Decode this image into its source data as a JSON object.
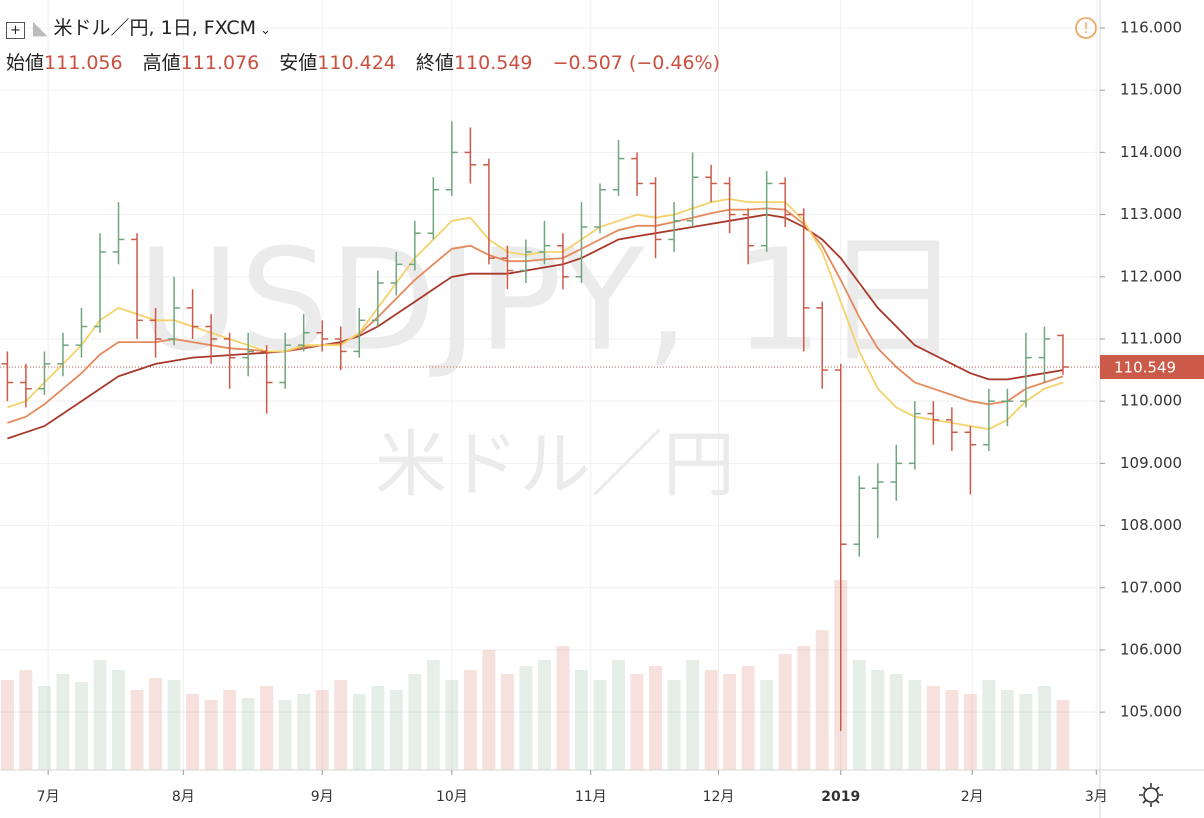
{
  "chart_data": {
    "type": "ohlc",
    "title": "米ドル／円, 1日, FXCM",
    "watermark": "USDJPY, 1日",
    "watermark_sub": "米ドル／円",
    "labels": {
      "open": "始値",
      "high": "高値",
      "low": "安値",
      "close": "終値"
    },
    "change_label": "−0.507 (−0.46%)",
    "last_price": 110.549,
    "up_color": "#6fa57f",
    "down_color": "#cc5a48",
    "xlim": [
      -0.4,
      59.0
    ],
    "xticks": [
      {
        "value": 2.2,
        "label": "7月"
      },
      {
        "value": 9.5,
        "label": "8月"
      },
      {
        "value": 17,
        "label": "9月"
      },
      {
        "value": 24,
        "label": "10月"
      },
      {
        "value": 31.5,
        "label": "11月"
      },
      {
        "value": 38.4,
        "label": "12月"
      },
      {
        "value": 45,
        "label": "2019"
      },
      {
        "value": 52.1,
        "label": "2月"
      },
      {
        "value": 58.8,
        "label": "3月"
      }
    ],
    "ylim": [
      104.07,
      116.45
    ],
    "yticks": [
      {
        "value": 105,
        "label": "105.000"
      },
      {
        "value": 106,
        "label": "106.000"
      },
      {
        "value": 107,
        "label": "107.000"
      },
      {
        "value": 108,
        "label": "108.000"
      },
      {
        "value": 109,
        "label": "109.000"
      },
      {
        "value": 110,
        "label": "110.000"
      },
      {
        "value": 111,
        "label": "111.000"
      },
      {
        "value": 112,
        "label": "112.000"
      },
      {
        "value": 113,
        "label": "113.000"
      },
      {
        "value": 114,
        "label": "114.000"
      },
      {
        "value": 115,
        "label": "115.000"
      },
      {
        "value": 116,
        "label": "116.000"
      }
    ],
    "grid": true,
    "ohlc": [
      [
        110.6,
        110.8,
        110.0,
        110.3
      ],
      [
        110.3,
        110.6,
        109.9,
        110.2
      ],
      [
        110.2,
        110.8,
        110.1,
        110.6
      ],
      [
        110.6,
        111.1,
        110.4,
        110.9
      ],
      [
        110.9,
        111.5,
        110.7,
        111.2
      ],
      [
        111.2,
        112.7,
        111.1,
        112.4
      ],
      [
        112.4,
        113.2,
        112.2,
        112.6
      ],
      [
        112.6,
        112.7,
        111.0,
        111.3
      ],
      [
        111.3,
        111.5,
        110.7,
        111.0
      ],
      [
        111.0,
        112.0,
        110.9,
        111.5
      ],
      [
        111.5,
        111.8,
        111.0,
        111.2
      ],
      [
        111.2,
        111.4,
        110.6,
        111.0
      ],
      [
        111.0,
        111.1,
        110.2,
        110.7
      ],
      [
        110.7,
        111.1,
        110.4,
        110.8
      ],
      [
        110.8,
        110.9,
        109.8,
        110.3
      ],
      [
        110.3,
        111.1,
        110.2,
        110.9
      ],
      [
        110.9,
        111.4,
        110.8,
        111.1
      ],
      [
        111.1,
        111.3,
        110.8,
        111.0
      ],
      [
        111.0,
        111.2,
        110.5,
        110.8
      ],
      [
        110.8,
        111.5,
        110.7,
        111.3
      ],
      [
        111.3,
        112.1,
        111.2,
        111.9
      ],
      [
        111.9,
        112.4,
        111.7,
        112.2
      ],
      [
        112.2,
        112.9,
        112.1,
        112.7
      ],
      [
        112.7,
        113.6,
        112.6,
        113.4
      ],
      [
        113.4,
        114.5,
        113.3,
        114.0
      ],
      [
        114.0,
        114.4,
        113.5,
        113.8
      ],
      [
        113.8,
        113.9,
        112.2,
        112.3
      ],
      [
        112.3,
        112.5,
        111.8,
        112.1
      ],
      [
        112.1,
        112.6,
        111.9,
        112.4
      ],
      [
        112.4,
        112.9,
        112.2,
        112.5
      ],
      [
        112.5,
        112.7,
        111.8,
        112.0
      ],
      [
        112.0,
        113.2,
        111.9,
        112.8
      ],
      [
        112.8,
        113.5,
        112.7,
        113.4
      ],
      [
        113.4,
        114.2,
        113.3,
        113.9
      ],
      [
        113.9,
        114.0,
        113.3,
        113.5
      ],
      [
        113.5,
        113.6,
        112.3,
        112.6
      ],
      [
        112.6,
        113.2,
        112.4,
        112.9
      ],
      [
        112.9,
        114.0,
        112.8,
        113.6
      ],
      [
        113.6,
        113.8,
        113.2,
        113.5
      ],
      [
        113.5,
        113.6,
        112.7,
        113.0
      ],
      [
        113.0,
        113.1,
        112.2,
        112.5
      ],
      [
        112.5,
        113.7,
        112.4,
        113.5
      ],
      [
        113.5,
        113.6,
        112.8,
        113.0
      ],
      [
        113.0,
        113.1,
        110.8,
        111.5
      ],
      [
        111.5,
        111.6,
        110.2,
        110.5
      ],
      [
        110.5,
        110.6,
        104.7,
        107.7
      ],
      [
        107.7,
        108.8,
        107.5,
        108.6
      ],
      [
        108.6,
        109.0,
        107.8,
        108.7
      ],
      [
        108.7,
        109.3,
        108.4,
        109.0
      ],
      [
        109.0,
        110.0,
        108.9,
        109.8
      ],
      [
        109.8,
        110.0,
        109.3,
        109.7
      ],
      [
        109.7,
        109.9,
        109.2,
        109.5
      ],
      [
        109.5,
        109.6,
        108.5,
        109.3
      ],
      [
        109.3,
        110.2,
        109.2,
        110.0
      ],
      [
        110.0,
        110.2,
        109.6,
        110.0
      ],
      [
        110.0,
        111.1,
        109.9,
        110.7
      ],
      [
        110.7,
        111.2,
        110.3,
        111.0
      ],
      [
        111.056,
        111.076,
        110.424,
        110.549
      ]
    ],
    "vlim": [
      0,
      100
    ],
    "volume": [
      45,
      50,
      42,
      48,
      44,
      55,
      50,
      40,
      46,
      45,
      38,
      35,
      40,
      36,
      42,
      35,
      38,
      40,
      45,
      38,
      42,
      40,
      48,
      55,
      45,
      50,
      60,
      48,
      52,
      55,
      62,
      50,
      45,
      55,
      48,
      52,
      45,
      55,
      50,
      48,
      52,
      45,
      58,
      62,
      70,
      95,
      55,
      50,
      48,
      45,
      42,
      40,
      38,
      45,
      40,
      38,
      42,
      35
    ],
    "series": [
      {
        "color": "#a8392a",
        "values": [
          109.4,
          109.5,
          109.6,
          109.8,
          110.0,
          110.2,
          110.4,
          110.5,
          110.6,
          110.65,
          110.7,
          110.72,
          110.74,
          110.76,
          110.78,
          110.8,
          110.85,
          110.9,
          110.95,
          111.05,
          111.2,
          111.4,
          111.6,
          111.8,
          112.0,
          112.05,
          112.05,
          112.05,
          112.1,
          112.15,
          112.2,
          112.3,
          112.45,
          112.6,
          112.65,
          112.7,
          112.75,
          112.8,
          112.85,
          112.9,
          112.95,
          113.0,
          112.95,
          112.8,
          112.6,
          112.3,
          111.9,
          111.5,
          111.2,
          110.9,
          110.75,
          110.6,
          110.45,
          110.35,
          110.35,
          110.4,
          110.45,
          110.5
        ]
      },
      {
        "color": "#e58a5c",
        "values": [
          109.65,
          109.75,
          109.95,
          110.2,
          110.45,
          110.75,
          110.95,
          110.95,
          110.95,
          111.0,
          110.95,
          110.9,
          110.85,
          110.83,
          110.8,
          110.8,
          110.87,
          110.9,
          110.92,
          111.08,
          111.35,
          111.65,
          111.95,
          112.2,
          112.45,
          112.5,
          112.35,
          112.25,
          112.25,
          112.28,
          112.3,
          112.45,
          112.6,
          112.75,
          112.82,
          112.82,
          112.88,
          112.95,
          113.02,
          113.08,
          113.08,
          113.1,
          113.08,
          112.85,
          112.5,
          111.95,
          111.35,
          110.85,
          110.55,
          110.3,
          110.2,
          110.1,
          110.0,
          109.95,
          110.0,
          110.2,
          110.3,
          110.4
        ]
      },
      {
        "color": "#f3d36a",
        "values": [
          109.9,
          110.0,
          110.3,
          110.6,
          110.9,
          111.3,
          111.5,
          111.4,
          111.3,
          111.3,
          111.2,
          111.1,
          111.0,
          110.9,
          110.8,
          110.8,
          110.9,
          110.9,
          110.9,
          111.1,
          111.5,
          111.9,
          112.3,
          112.6,
          112.9,
          112.95,
          112.6,
          112.4,
          112.35,
          112.4,
          112.4,
          112.6,
          112.8,
          112.9,
          113.0,
          112.95,
          113.0,
          113.1,
          113.2,
          113.25,
          113.2,
          113.2,
          113.2,
          112.9,
          112.4,
          111.6,
          110.8,
          110.2,
          109.9,
          109.75,
          109.7,
          109.65,
          109.6,
          109.55,
          109.7,
          110.0,
          110.2,
          110.3
        ]
      }
    ]
  }
}
